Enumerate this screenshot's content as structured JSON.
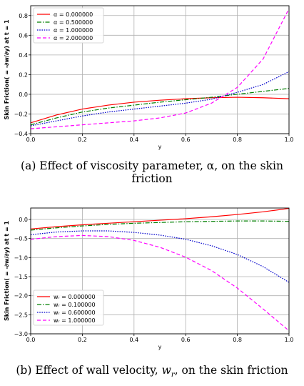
{
  "chart_data": [
    {
      "type": "line",
      "ylabel": "Skin Friction( = -∂w/∂y) at t = 1",
      "xlabel": "y",
      "xlim": [
        0.0,
        1.0
      ],
      "ylim": [
        -0.4,
        0.9
      ],
      "xticks": [
        0.0,
        0.2,
        0.4,
        0.6,
        0.8,
        1.0
      ],
      "yticks": [
        -0.4,
        -0.2,
        0.0,
        0.2,
        0.4,
        0.6,
        0.8
      ],
      "grid": true,
      "legend_position": "top-left",
      "series": [
        {
          "name": "α = 0.000000",
          "color": "#ff0000",
          "dash": "solid",
          "x": [
            0.0,
            0.1,
            0.2,
            0.3,
            0.4,
            0.5,
            0.6,
            0.7,
            0.8,
            0.9,
            1.0
          ],
          "y": [
            -0.29,
            -0.21,
            -0.15,
            -0.11,
            -0.08,
            -0.06,
            -0.045,
            -0.035,
            -0.03,
            -0.035,
            -0.045
          ]
        },
        {
          "name": "α = 0.500000",
          "color": "#007f00",
          "dash": "dashdot",
          "x": [
            0.0,
            0.1,
            0.2,
            0.3,
            0.4,
            0.5,
            0.6,
            0.7,
            0.8,
            0.9,
            1.0
          ],
          "y": [
            -0.31,
            -0.24,
            -0.18,
            -0.14,
            -0.11,
            -0.08,
            -0.055,
            -0.03,
            0.0,
            0.03,
            0.06
          ]
        },
        {
          "name": "α = 1.000000",
          "color": "#0000cc",
          "dash": "dotted",
          "x": [
            0.0,
            0.1,
            0.2,
            0.3,
            0.4,
            0.5,
            0.6,
            0.7,
            0.8,
            0.9,
            1.0
          ],
          "y": [
            -0.32,
            -0.27,
            -0.22,
            -0.18,
            -0.15,
            -0.12,
            -0.09,
            -0.05,
            0.02,
            0.1,
            0.23
          ]
        },
        {
          "name": "α = 2.000000",
          "color": "#ff00ff",
          "dash": "dashed",
          "x": [
            0.0,
            0.1,
            0.2,
            0.3,
            0.4,
            0.5,
            0.6,
            0.7,
            0.8,
            0.9,
            1.0
          ],
          "y": [
            -0.35,
            -0.33,
            -0.31,
            -0.29,
            -0.27,
            -0.24,
            -0.19,
            -0.09,
            0.07,
            0.36,
            0.87
          ]
        }
      ]
    },
    {
      "type": "line",
      "ylabel": "Skin Friction( = -∂w/∂y) at t = 1",
      "xlabel": "y",
      "xlim": [
        0.0,
        1.0
      ],
      "ylim": [
        -3.0,
        0.3
      ],
      "xticks": [
        0.0,
        0.2,
        0.4,
        0.6,
        0.8,
        1.0
      ],
      "yticks": [
        -3.0,
        -2.5,
        -2.0,
        -1.5,
        -1.0,
        -0.5,
        0.0
      ],
      "grid": true,
      "legend_position": "bottom-left",
      "series": [
        {
          "name": "wᵣ = 0.000000",
          "color": "#ff0000",
          "dash": "solid",
          "x": [
            0.0,
            0.1,
            0.2,
            0.3,
            0.4,
            0.5,
            0.6,
            0.7,
            0.8,
            0.9,
            1.0
          ],
          "y": [
            -0.25,
            -0.19,
            -0.14,
            -0.1,
            -0.06,
            -0.02,
            0.02,
            0.07,
            0.13,
            0.2,
            0.29
          ]
        },
        {
          "name": "wᵣ = 0.100000",
          "color": "#007f00",
          "dash": "dashdot",
          "x": [
            0.0,
            0.1,
            0.2,
            0.3,
            0.4,
            0.5,
            0.6,
            0.7,
            0.8,
            0.9,
            1.0
          ],
          "y": [
            -0.28,
            -0.22,
            -0.17,
            -0.13,
            -0.1,
            -0.08,
            -0.06,
            -0.05,
            -0.04,
            -0.04,
            -0.05
          ]
        },
        {
          "name": "wᵣ = 0.600000",
          "color": "#0000cc",
          "dash": "dotted",
          "x": [
            0.0,
            0.1,
            0.2,
            0.3,
            0.4,
            0.5,
            0.6,
            0.7,
            0.8,
            0.9,
            1.0
          ],
          "y": [
            -0.4,
            -0.33,
            -0.3,
            -0.3,
            -0.34,
            -0.41,
            -0.52,
            -0.69,
            -0.92,
            -1.24,
            -1.65
          ]
        },
        {
          "name": "wᵣ = 1.000000",
          "color": "#ff00ff",
          "dash": "dashed",
          "x": [
            0.0,
            0.1,
            0.2,
            0.3,
            0.4,
            0.5,
            0.6,
            0.7,
            0.8,
            0.9,
            1.0
          ],
          "y": [
            -0.52,
            -0.45,
            -0.42,
            -0.45,
            -0.55,
            -0.73,
            -0.99,
            -1.34,
            -1.8,
            -2.35,
            -2.92
          ]
        }
      ]
    }
  ],
  "captions": {
    "a": "(a)  Effect of viscosity parameter, α, on the skin friction",
    "b_prefix": "(b)  Effect of wall velocity, ",
    "b_var": "w",
    "b_sub": "r",
    "b_suffix": ", on the skin friction"
  }
}
